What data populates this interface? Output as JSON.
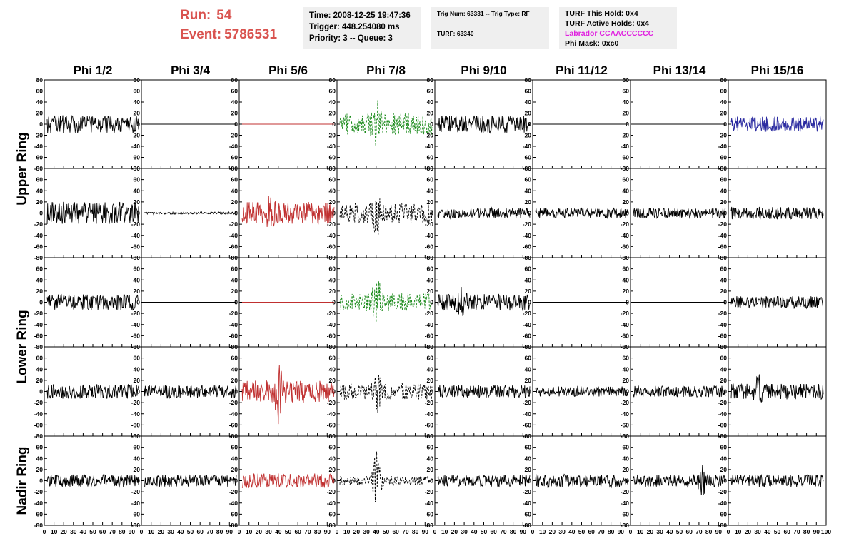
{
  "header": {
    "run_label": "Run:",
    "run_value": "54",
    "event_label": "Event:",
    "event_value": "5786531",
    "run_color": "#d9534f"
  },
  "time_box": {
    "time": "Time: 2008-12-25 19:47:36",
    "trigger": "Trigger: 448.254080 ms",
    "priority": "Priority: 3 -- Queue: 3"
  },
  "trig_box": {
    "trig_line": "Trig Num: 63331 -- Trig Type: RF",
    "turf_line": "TURF: 63340"
  },
  "turf_box": {
    "this_hold": "TURF This Hold: 0x4",
    "active_holds": "TURF Active Holds: 0x4",
    "labrador": "Labrador CCAACCCCCC",
    "labrador_color": "#e020e0",
    "phi_mask": "Phi Mask: 0xc0"
  },
  "chart_data": {
    "type": "line",
    "description_of_layout": "5 rows x 8 columns waveform panels",
    "phi_labels": [
      "Phi 1/2",
      "Phi 3/4",
      "Phi 5/6",
      "Phi 7/8",
      "Phi 9/10",
      "Phi 11/12",
      "Phi 13/14",
      "Phi 15/16"
    ],
    "ring_labels": [
      {
        "name": "Upper Ring",
        "rows": [
          0,
          1
        ]
      },
      {
        "name": "Lower Ring",
        "rows": [
          2,
          3
        ]
      },
      {
        "name": "Nadir Ring",
        "rows": [
          4,
          4
        ]
      }
    ],
    "ylim": [
      -80,
      80
    ],
    "y_ticks": [
      "80",
      "60",
      "40",
      "20",
      "0",
      "-20",
      "-40",
      "-60",
      "-80"
    ],
    "xlim": [
      0,
      100
    ],
    "x_ticks": [
      "0",
      "10",
      "20",
      "30",
      "40",
      "50",
      "60",
      "70",
      "80",
      "90",
      "100"
    ],
    "panels": [
      [
        {
          "color": "#000000",
          "amp": 16,
          "style": "solid"
        },
        {
          "color": "#000000",
          "amp": 0,
          "style": "flat"
        },
        {
          "color": "#c03030",
          "amp": 0,
          "style": "flat"
        },
        {
          "color": "#1a8a1a",
          "amp": 20,
          "style": "dashed",
          "burst": 40,
          "burst_amp": 50
        },
        {
          "color": "#000000",
          "amp": 16,
          "style": "solid"
        },
        {
          "color": "#000000",
          "amp": 0,
          "style": "flat"
        },
        {
          "color": "#000000",
          "amp": 0,
          "style": "flat"
        },
        {
          "color": "#2a2aa0",
          "amp": 14,
          "style": "solid"
        }
      ],
      [
        {
          "color": "#000000",
          "amp": 20,
          "style": "solid"
        },
        {
          "color": "#000000",
          "amp": 2,
          "style": "solid"
        },
        {
          "color": "#c03030",
          "amp": 20,
          "style": "solid",
          "burst": 30,
          "burst_amp": 35
        },
        {
          "color": "#000000",
          "amp": 18,
          "style": "dashed",
          "burst": 40,
          "burst_amp": 45
        },
        {
          "color": "#000000",
          "amp": 10,
          "style": "solid"
        },
        {
          "color": "#000000",
          "amp": 9,
          "style": "solid"
        },
        {
          "color": "#000000",
          "amp": 9,
          "style": "solid"
        },
        {
          "color": "#000000",
          "amp": 11,
          "style": "solid"
        }
      ],
      [
        {
          "color": "#000000",
          "amp": 14,
          "style": "solid"
        },
        {
          "color": "#000000",
          "amp": 0,
          "style": "flat"
        },
        {
          "color": "#c03030",
          "amp": 0,
          "style": "flat"
        },
        {
          "color": "#1a8a1a",
          "amp": 16,
          "style": "dashed",
          "burst": 40,
          "burst_amp": 55
        },
        {
          "color": "#000000",
          "amp": 15,
          "style": "solid",
          "burst": 25,
          "burst_amp": 30
        },
        {
          "color": "#000000",
          "amp": 0,
          "style": "flat"
        },
        {
          "color": "#000000",
          "amp": 0,
          "style": "flat"
        },
        {
          "color": "#000000",
          "amp": 11,
          "style": "solid"
        }
      ],
      [
        {
          "color": "#000000",
          "amp": 13,
          "style": "solid"
        },
        {
          "color": "#000000",
          "amp": 12,
          "style": "solid"
        },
        {
          "color": "#c03030",
          "amp": 20,
          "style": "solid",
          "burst": 40,
          "burst_amp": 60
        },
        {
          "color": "#000000",
          "amp": 15,
          "style": "dashed",
          "burst": 40,
          "burst_amp": 45
        },
        {
          "color": "#000000",
          "amp": 12,
          "style": "solid"
        },
        {
          "color": "#000000",
          "amp": 9,
          "style": "solid"
        },
        {
          "color": "#000000",
          "amp": 10,
          "style": "solid"
        },
        {
          "color": "#000000",
          "amp": 14,
          "style": "solid",
          "burst": 30,
          "burst_amp": 35
        }
      ],
      [
        {
          "color": "#000000",
          "amp": 11,
          "style": "solid"
        },
        {
          "color": "#000000",
          "amp": 11,
          "style": "solid"
        },
        {
          "color": "#c03030",
          "amp": 13,
          "style": "solid"
        },
        {
          "color": "#000000",
          "amp": 8,
          "style": "dashed",
          "burst": 40,
          "burst_amp": 55
        },
        {
          "color": "#000000",
          "amp": 11,
          "style": "solid"
        },
        {
          "color": "#000000",
          "amp": 12,
          "style": "solid"
        },
        {
          "color": "#000000",
          "amp": 11,
          "style": "solid",
          "burst": 75,
          "burst_amp": 35
        },
        {
          "color": "#000000",
          "amp": 11,
          "style": "solid"
        }
      ]
    ]
  }
}
